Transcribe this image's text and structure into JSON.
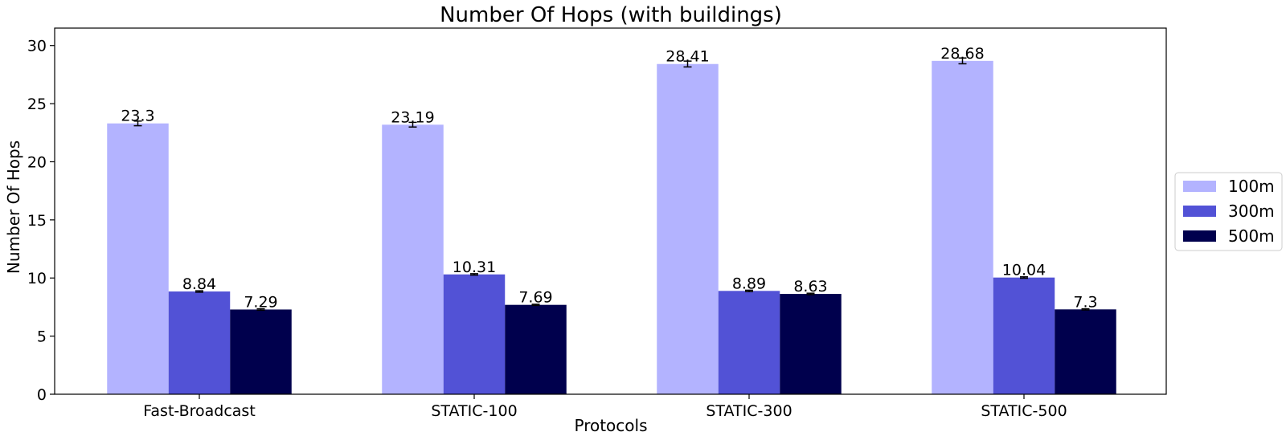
{
  "chart_data": {
    "type": "bar",
    "title": "Number Of Hops (with buildings)",
    "xlabel": "Protocols",
    "ylabel": "Number Of Hops",
    "categories": [
      "Fast-Broadcast",
      "STATIC-100",
      "STATIC-300",
      "STATIC-500"
    ],
    "series": [
      {
        "name": "100m",
        "color": "#b3b3ff",
        "values": [
          23.3,
          23.19,
          28.41,
          28.68
        ],
        "errors": [
          0.2,
          0.2,
          0.25,
          0.25
        ],
        "labels": [
          "23.3",
          "23.19",
          "28.41",
          "28.68"
        ]
      },
      {
        "name": "300m",
        "color": "#5252d6",
        "values": [
          8.84,
          10.31,
          8.89,
          10.04
        ],
        "errors": [
          0.06,
          0.06,
          0.06,
          0.06
        ],
        "labels": [
          "8.84",
          "10.31",
          "8.89",
          "10.04"
        ]
      },
      {
        "name": "500m",
        "color": "#00004d",
        "values": [
          7.29,
          7.69,
          8.63,
          7.3
        ],
        "errors": [
          0.06,
          0.05,
          0.06,
          0.05
        ],
        "labels": [
          "7.29",
          "7.69",
          "8.63",
          "7.3"
        ]
      }
    ],
    "ylim": [
      0,
      31.5
    ],
    "yticks": [
      0,
      5,
      10,
      15,
      20,
      25,
      30
    ],
    "grid": false,
    "legend_position": "right"
  }
}
